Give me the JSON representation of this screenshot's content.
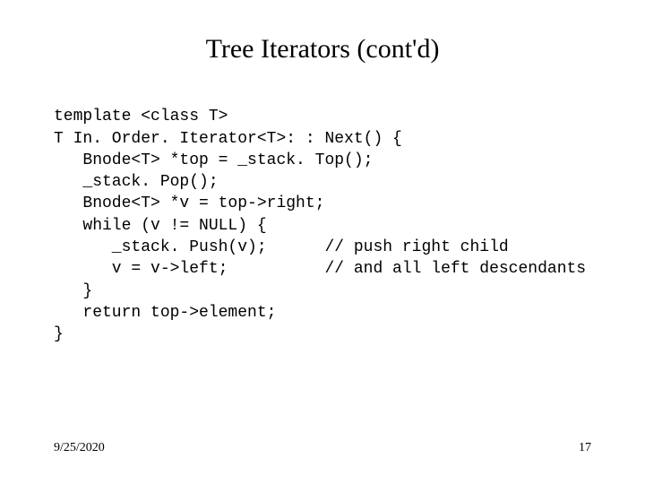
{
  "title": "Tree Iterators (cont'd)",
  "code": {
    "l1": "template <class T>",
    "l2": "T In. Order. Iterator<T>: : Next() {",
    "l3": "   Bnode<T> *top = _stack. Top();",
    "l4": "   _stack. Pop();",
    "l5": "   Bnode<T> *v = top->right;",
    "l6": "   while (v != NULL) {",
    "l7": "      _stack. Push(v);      // push right child",
    "l8": "      v = v->left;          // and all left descendants",
    "l9": "   }",
    "l10": "   return top->element;",
    "l11": "}"
  },
  "footer": {
    "date": "9/25/2020",
    "page": "17"
  }
}
